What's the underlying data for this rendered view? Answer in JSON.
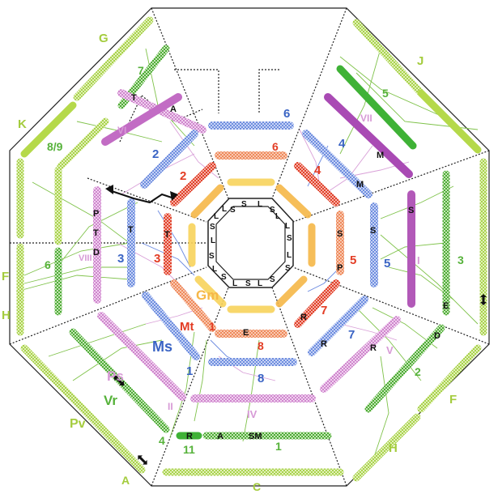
{
  "colors": {
    "light_green": "#b5d94a",
    "green": "#5cbf3a",
    "dark_green": "#1f9c33",
    "magenta": "#b259b8",
    "pink": "#d79ad6",
    "blue": "#3a64c4",
    "light_blue": "#7e98e2",
    "red": "#e33c24",
    "salmon": "#f08a60",
    "orange": "#f6b748",
    "yellow": "#f8d35c",
    "black": "#111111"
  },
  "labels": {
    "g_top": "G",
    "j_top": "J",
    "k_left": "K",
    "f_left": "F",
    "h_left": "H",
    "pv": "Pv",
    "a_bottom": "A",
    "c_bottom": "C",
    "f_right": "F",
    "h_right": "H",
    "n7": "7",
    "n5_top": "5",
    "n89": "8/9",
    "n6_left": "6",
    "n3_right": "3",
    "n2_right": "2",
    "n4_bottom": "4",
    "n11": "11",
    "n1": "1",
    "vi": "VI",
    "vii": "VII",
    "viii": "VIII",
    "ii": "II",
    "iv": "IV",
    "v": "V",
    "i_roman": "I",
    "blue2": "2",
    "blue6": "6",
    "blue4": "4",
    "blue3": "3",
    "blue5": "5",
    "blue7": "7",
    "blue8": "8",
    "blue1": "1",
    "ms": "Ms",
    "red2": "2",
    "red6": "6",
    "red4": "4",
    "red3": "3",
    "red5": "5",
    "red7": "7",
    "red8": "8",
    "red1": "1",
    "mt": "Mt",
    "gm": "Gm",
    "ps": "Ps",
    "vr": "Vr",
    "t_a": "T",
    "a_a": "A",
    "m_a": "M",
    "m_b": "M",
    "p1": "P",
    "t1": "T",
    "d1": "D",
    "t2": "T",
    "t3": "T",
    "s1": "S",
    "s2": "S",
    "s3": "S",
    "p2": "P",
    "e1": "E",
    "e2": "E",
    "d2": "D",
    "r1": "R",
    "r2": "R",
    "r3": "R",
    "r4": "R",
    "a_bar": "A",
    "sm_bar": "SM",
    "core_l": "L",
    "core_s": "S"
  }
}
